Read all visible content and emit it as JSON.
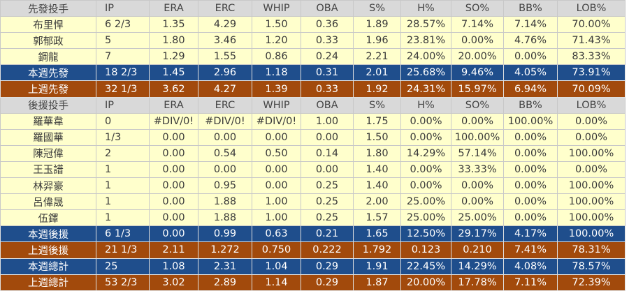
{
  "columns": [
    "IP",
    "ERA",
    "ERC",
    "WHIP",
    "OBA",
    "S%",
    "H%",
    "SO%",
    "BB%",
    "LOB%"
  ],
  "sections": [
    {
      "header": "先發投手",
      "rows": [
        [
          "布里悍",
          "6 2/3",
          "1.35",
          "4.29",
          "1.50",
          "0.36",
          "1.89",
          "28.57%",
          "7.14%",
          "7.14%",
          "70.00%"
        ],
        [
          "郭郁政",
          "5",
          "1.80",
          "3.46",
          "1.20",
          "0.33",
          "1.96",
          "23.81%",
          "0.00%",
          "4.76%",
          "71.43%"
        ],
        [
          "鋼龍",
          "7",
          "1.29",
          "1.55",
          "0.86",
          "0.24",
          "2.21",
          "24.00%",
          "20.00%",
          "0.00%",
          "83.33%"
        ]
      ],
      "totals": [
        {
          "style": "blue",
          "cells": [
            "本週先發",
            "18 2/3",
            "1.45",
            "2.96",
            "1.18",
            "0.31",
            "2.01",
            "25.68%",
            "9.46%",
            "4.05%",
            "73.91%"
          ]
        },
        {
          "style": "brown",
          "cells": [
            "上週先發",
            "32 1/3",
            "3.62",
            "4.27",
            "1.39",
            "0.33",
            "1.92",
            "24.31%",
            "15.97%",
            "6.94%",
            "70.09%"
          ]
        }
      ]
    },
    {
      "header": "後援投手",
      "rows": [
        [
          "羅華韋",
          "0",
          "#DIV/0!",
          "#DIV/0!",
          "#DIV/0!",
          "1.00",
          "1.75",
          "0.00%",
          "0.00%",
          "100.00%",
          "0.00%"
        ],
        [
          "羅國華",
          "1/3",
          "0.00",
          "0.00",
          "0.00",
          "0.00",
          "1.50",
          "0.00%",
          "100.00%",
          "0.00%",
          "0.00%"
        ],
        [
          "陳冠偉",
          "2",
          "0.00",
          "0.54",
          "0.50",
          "0.14",
          "1.80",
          "14.29%",
          "57.14%",
          "0.00%",
          "100.00%"
        ],
        [
          "王玉譜",
          "1",
          "0.00",
          "0.00",
          "0.00",
          "0.00",
          "1.40",
          "0.00%",
          "33.33%",
          "0.00%",
          "0.00%"
        ],
        [
          "林羿豪",
          "1",
          "0.00",
          "0.95",
          "0.00",
          "0.25",
          "1.40",
          "0.00%",
          "0.00%",
          "0.00%",
          "100.00%"
        ],
        [
          "呂偉晟",
          "1",
          "0.00",
          "1.88",
          "1.00",
          "0.25",
          "2.00",
          "25.00%",
          "0.00%",
          "0.00%",
          "100.00%"
        ],
        [
          "伍鐸",
          "1",
          "0.00",
          "1.88",
          "1.00",
          "0.25",
          "1.57",
          "25.00%",
          "25.00%",
          "0.00%",
          "100.00%"
        ]
      ],
      "totals": [
        {
          "style": "blue",
          "cells": [
            "本週後援",
            "6 1/3",
            "0.00",
            "0.99",
            "0.63",
            "0.21",
            "1.65",
            "12.50%",
            "29.17%",
            "4.17%",
            "100.00%"
          ]
        },
        {
          "style": "brown",
          "cells": [
            "上週後援",
            "21 1/3",
            "2.11",
            "1.272",
            "0.750",
            "0.222",
            "1.792",
            "0.123",
            "0.210",
            "7.41%",
            "78.31%"
          ]
        },
        {
          "style": "blue",
          "cells": [
            "本週總計",
            "25",
            "1.08",
            "2.31",
            "1.04",
            "0.29",
            "1.91",
            "22.45%",
            "14.29%",
            "4.08%",
            "78.57%"
          ]
        },
        {
          "style": "brown",
          "cells": [
            "上週總計",
            "53 2/3",
            "3.02",
            "2.89",
            "1.14",
            "0.29",
            "1.87",
            "20.00%",
            "17.78%",
            "7.11%",
            "72.39%"
          ]
        }
      ]
    }
  ]
}
